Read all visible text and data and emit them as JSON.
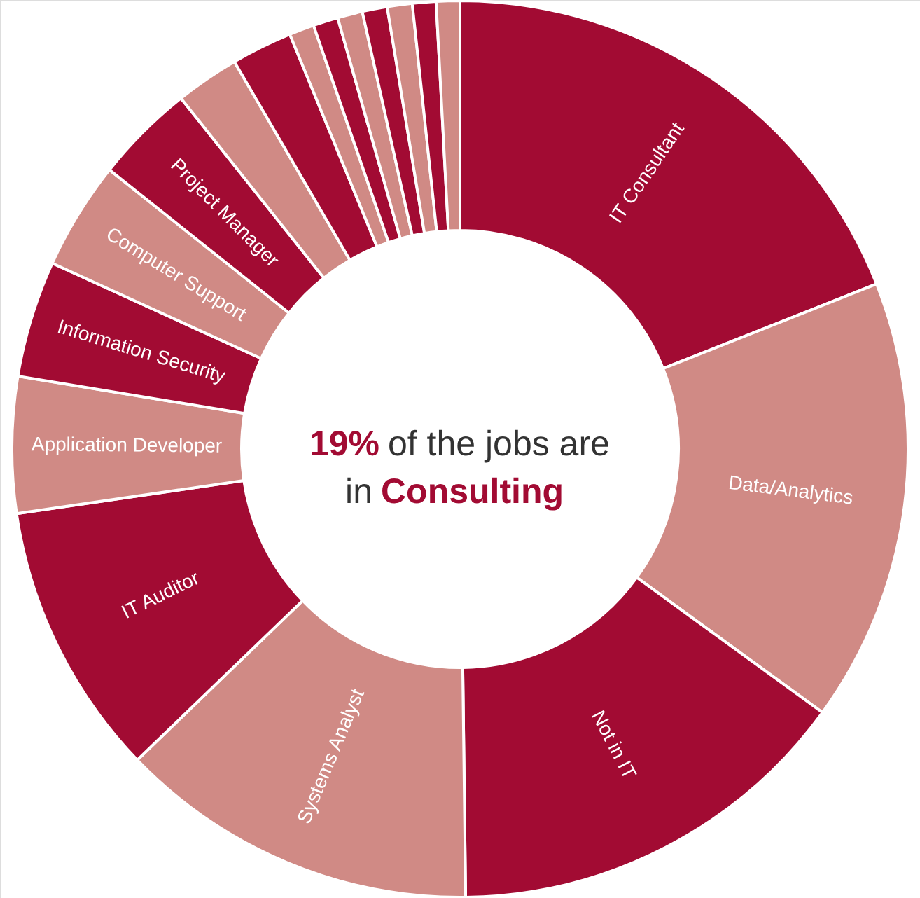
{
  "chart_data": {
    "type": "donut",
    "categories": [
      "IT Consultant",
      "Data/Analytics",
      "Not in IT",
      "Systems Analyst",
      "IT Auditor",
      "Application Developer",
      "Information Security",
      "Computer Support",
      "Project Manager",
      null,
      null,
      null,
      null,
      null,
      null,
      null,
      null,
      null
    ],
    "values": [
      19,
      16,
      14.8,
      13,
      9.9,
      4.9,
      4.2,
      3.9,
      3.6,
      2.3,
      2.2,
      0.9,
      0.9,
      0.9,
      0.9,
      0.9,
      0.85,
      0.85
    ],
    "colors": [
      "#a20b33",
      "#d08a85",
      "#a20b33",
      "#d08a85",
      "#a20b33",
      "#d08a85",
      "#a20b33",
      "#d08a85",
      "#a20b33",
      "#d08a85",
      "#a20b33",
      "#d08a85",
      "#a20b33",
      "#d08a85",
      "#a20b33",
      "#d08a85",
      "#a20b33",
      "#d08a85"
    ],
    "annotations": [
      "19%",
      "of the jobs are",
      "in",
      "Consulting"
    ]
  }
}
